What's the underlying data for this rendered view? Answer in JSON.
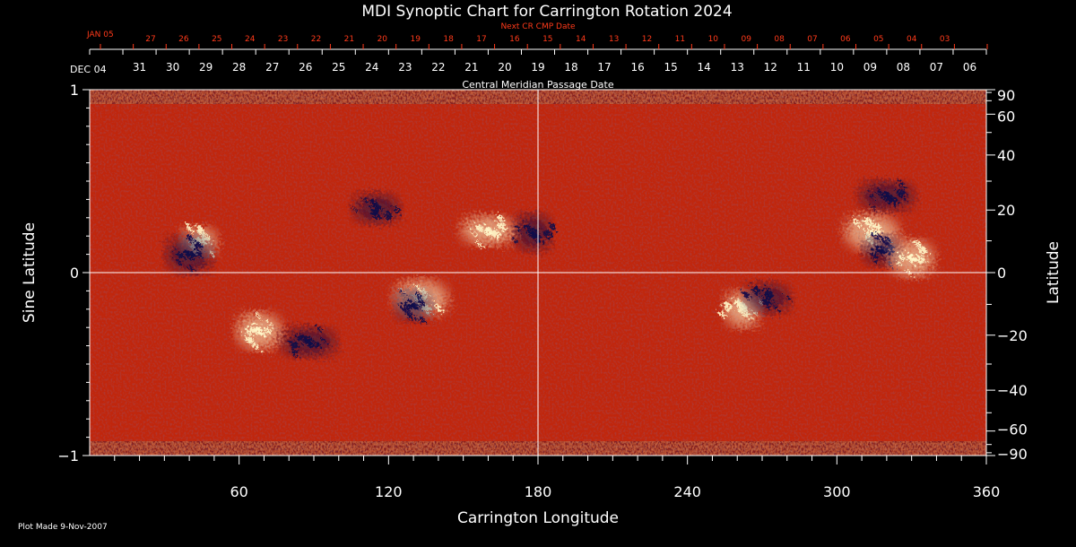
{
  "chart_data": {
    "type": "heatmap",
    "title": "MDI Synoptic Chart for Carrington Rotation 2024",
    "xlabel": "Carrington Longitude",
    "ylabel_left": "Sine Latitude",
    "ylabel_right": "Latitude",
    "xlim": [
      0,
      360
    ],
    "ylim": [
      -1,
      1
    ],
    "x_ticks": [
      60,
      120,
      180,
      240,
      300,
      360
    ],
    "y_left_ticks": [
      {
        "value": 1,
        "label": "1"
      },
      {
        "value": 0,
        "label": "0"
      },
      {
        "value": -1,
        "label": "−1"
      }
    ],
    "y_right_ticks": [
      90,
      60,
      40,
      20,
      0,
      -20,
      -40,
      -60,
      -90
    ],
    "top_axis_label": "Central Meridian Passage Date",
    "top_axis_start_label": "DEC 04",
    "top_axis_dates": [
      "31",
      "30",
      "29",
      "28",
      "27",
      "26",
      "25",
      "24",
      "23",
      "22",
      "21",
      "20",
      "19",
      "18",
      "17",
      "16",
      "15",
      "14",
      "13",
      "12",
      "11",
      "10",
      "09",
      "08",
      "07",
      "06"
    ],
    "next_cr_label": "Next CR CMP Date",
    "next_cr_start_label": "JAN 05",
    "next_cr_dates": [
      "27",
      "26",
      "25",
      "24",
      "23",
      "22",
      "21",
      "20",
      "19",
      "18",
      "17",
      "16",
      "15",
      "14",
      "13",
      "12",
      "11",
      "10",
      "09",
      "08",
      "07",
      "06",
      "05",
      "04",
      "03"
    ],
    "features": [
      {
        "polarity": "positive",
        "lon": 44,
        "sinlat": 0.17
      },
      {
        "polarity": "negative",
        "lon": 40,
        "sinlat": 0.1
      },
      {
        "polarity": "positive",
        "lon": 160,
        "sinlat": 0.23
      },
      {
        "polarity": "negative",
        "lon": 178,
        "sinlat": 0.22
      },
      {
        "polarity": "negative",
        "lon": 115,
        "sinlat": 0.35
      },
      {
        "polarity": "positive",
        "lon": 133,
        "sinlat": -0.14
      },
      {
        "polarity": "negative",
        "lon": 130,
        "sinlat": -0.18
      },
      {
        "polarity": "positive",
        "lon": 68,
        "sinlat": -0.32
      },
      {
        "polarity": "negative",
        "lon": 88,
        "sinlat": -0.38
      },
      {
        "polarity": "positive",
        "lon": 262,
        "sinlat": -0.2
      },
      {
        "polarity": "negative",
        "lon": 272,
        "sinlat": -0.14
      },
      {
        "polarity": "positive",
        "lon": 314,
        "sinlat": 0.22
      },
      {
        "polarity": "negative",
        "lon": 318,
        "sinlat": 0.12
      },
      {
        "polarity": "positive",
        "lon": 330,
        "sinlat": 0.08
      },
      {
        "polarity": "negative",
        "lon": 320,
        "sinlat": 0.42
      }
    ],
    "colors": {
      "background": "#000000",
      "axis": "#ffffff",
      "next_cr": "#ff3a1a",
      "field_base": "#e05010",
      "positive": "#fff6c8",
      "negative": "#100848"
    }
  },
  "footer": {
    "plot_made": "Plot Made  9-Nov-2007"
  }
}
